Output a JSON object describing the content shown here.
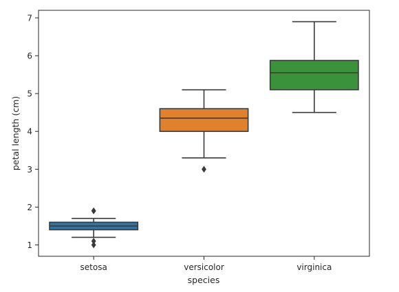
{
  "chart_data": {
    "type": "box",
    "title": "",
    "xlabel": "species",
    "ylabel": "petal length (cm)",
    "ylim": [
      0.7,
      7.2
    ],
    "yticks": [
      1,
      2,
      3,
      4,
      5,
      6,
      7
    ],
    "grid": false,
    "categories": [
      "setosa",
      "versicolor",
      "virginica"
    ],
    "boxes": [
      {
        "category": "setosa",
        "color": "#3274a1",
        "whisker_low": 1.2,
        "q1": 1.4,
        "median": 1.5,
        "q3": 1.6,
        "whisker_high": 1.7,
        "outliers": [
          1.9,
          1.9,
          1.0,
          1.1
        ]
      },
      {
        "category": "versicolor",
        "color": "#e1812c",
        "whisker_low": 3.3,
        "q1": 4.0,
        "median": 4.35,
        "q3": 4.6,
        "whisker_high": 5.1,
        "outliers": [
          3.0
        ]
      },
      {
        "category": "virginica",
        "color": "#3a923a",
        "whisker_low": 4.5,
        "q1": 5.1,
        "median": 5.55,
        "q3": 5.875,
        "whisker_high": 6.9,
        "outliers": []
      }
    ]
  }
}
